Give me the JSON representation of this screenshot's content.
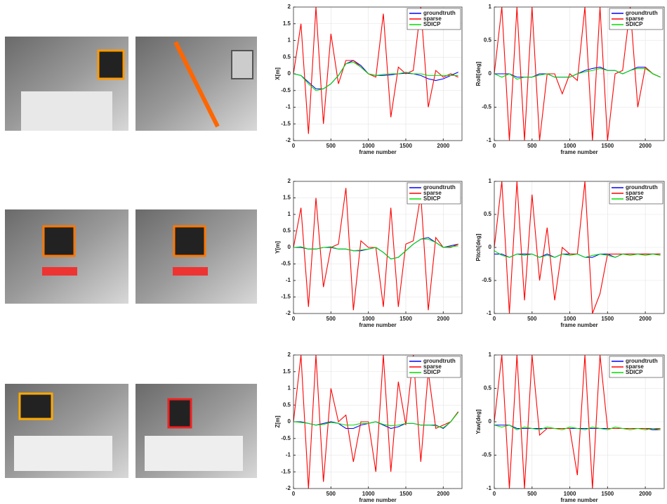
{
  "chart_data": [
    {
      "type": "line",
      "ylabel": "X[m]",
      "xlabel": "frame number",
      "x": [
        0,
        100,
        200,
        300,
        400,
        500,
        600,
        700,
        800,
        900,
        1000,
        1100,
        1200,
        1300,
        1400,
        1500,
        1600,
        1700,
        1800,
        1900,
        2000,
        2100,
        2200
      ],
      "xlim": [
        0,
        2250
      ],
      "xticks": [
        0,
        500,
        1000,
        1500,
        2000
      ],
      "ylim": [
        -2,
        2
      ],
      "yticks": [
        -2,
        -1.5,
        -1,
        -0.5,
        0,
        0.5,
        1,
        1.5,
        2
      ],
      "grid": true,
      "legend": "upper right",
      "series": [
        {
          "name": "groundtruth",
          "color": "#0000ff",
          "values": [
            0,
            -0.05,
            -0.25,
            -0.45,
            -0.45,
            -0.3,
            -0.05,
            0.3,
            0.4,
            0.25,
            0,
            -0.05,
            -0.05,
            -0.03,
            0,
            0.02,
            0,
            -0.05,
            -0.15,
            -0.2,
            -0.15,
            -0.05,
            0.05
          ]
        },
        {
          "name": "sparse",
          "color": "#ff0000",
          "values": [
            0,
            1.5,
            -1.8,
            2,
            -1.5,
            1.2,
            -0.3,
            0.4,
            0.4,
            0.2,
            0,
            -0.1,
            1.8,
            -1.3,
            0.2,
            0,
            0.1,
            2,
            -1,
            0.1,
            -0.1,
            0,
            -0.1
          ]
        },
        {
          "name": "SDICP",
          "color": "#00dd00",
          "values": [
            0,
            -0.05,
            -0.3,
            -0.5,
            -0.45,
            -0.3,
            -0.05,
            0.3,
            0.35,
            0.2,
            0,
            -0.05,
            -0.02,
            0,
            0,
            0.05,
            0,
            0,
            -0.05,
            -0.05,
            -0.05,
            -0.05,
            -0.05
          ]
        }
      ]
    },
    {
      "type": "line",
      "ylabel": "Roll[deg]",
      "xlabel": "frame number",
      "x": [
        0,
        100,
        200,
        300,
        400,
        500,
        600,
        700,
        800,
        900,
        1000,
        1100,
        1200,
        1300,
        1400,
        1500,
        1600,
        1700,
        1800,
        1900,
        2000,
        2100,
        2200
      ],
      "xlim": [
        0,
        2250
      ],
      "xticks": [
        0,
        500,
        1000,
        1500,
        2000
      ],
      "ylim": [
        -1,
        1
      ],
      "yticks": [
        -1,
        -0.5,
        0,
        0.5,
        1
      ],
      "grid": true,
      "legend": "upper right",
      "series": [
        {
          "name": "groundtruth",
          "color": "#0000ff",
          "values": [
            0,
            0,
            0,
            -0.05,
            -0.05,
            -0.05,
            0,
            0,
            -0.05,
            -0.05,
            -0.05,
            0,
            0.05,
            0.08,
            0.1,
            0.05,
            0.05,
            0,
            0.05,
            0.1,
            0.1,
            0,
            -0.05
          ]
        },
        {
          "name": "sparse",
          "color": "#ff0000",
          "values": [
            0,
            1,
            -1,
            1,
            -1,
            1,
            -1,
            0,
            0,
            -0.3,
            0,
            -0.1,
            1,
            -1,
            1,
            -1,
            0,
            0.05,
            1,
            -0.5,
            0.1,
            0,
            -0.05
          ]
        },
        {
          "name": "SDICP",
          "color": "#00dd00",
          "values": [
            0,
            -0.05,
            0,
            -0.08,
            -0.05,
            -0.05,
            -0.02,
            0,
            -0.05,
            -0.05,
            -0.05,
            0,
            0.03,
            0.05,
            0.08,
            0.05,
            0.05,
            0,
            0.05,
            0.08,
            0.08,
            0,
            -0.05
          ]
        }
      ]
    },
    {
      "type": "line",
      "ylabel": "Y[m]",
      "xlabel": "frame number",
      "x": [
        0,
        100,
        200,
        300,
        400,
        500,
        600,
        700,
        800,
        900,
        1000,
        1100,
        1200,
        1300,
        1400,
        1500,
        1600,
        1700,
        1800,
        1900,
        2000,
        2100,
        2200
      ],
      "xlim": [
        0,
        2250
      ],
      "xticks": [
        0,
        500,
        1000,
        1500,
        2000
      ],
      "ylim": [
        -2,
        2
      ],
      "yticks": [
        -2,
        -1.5,
        -1,
        -0.5,
        0,
        0.5,
        1,
        1.5,
        2
      ],
      "grid": true,
      "legend": "upper right",
      "series": [
        {
          "name": "groundtruth",
          "color": "#0000ff",
          "values": [
            0,
            0,
            -0.05,
            -0.05,
            0,
            0,
            -0.05,
            -0.05,
            -0.1,
            -0.1,
            -0.05,
            0,
            -0.15,
            -0.35,
            -0.3,
            -0.1,
            0.1,
            0.25,
            0.3,
            0.15,
            0,
            0.05,
            0.1
          ]
        },
        {
          "name": "sparse",
          "color": "#ff0000",
          "values": [
            0,
            1.2,
            -1.8,
            1.5,
            -1.2,
            0,
            0.1,
            1.8,
            -1.9,
            0.2,
            0,
            0,
            -1.8,
            1.2,
            -1.8,
            0.1,
            0.2,
            1.6,
            -1.9,
            0.3,
            0,
            0,
            0.1
          ]
        },
        {
          "name": "SDICP",
          "color": "#00dd00",
          "values": [
            0,
            0.02,
            -0.05,
            -0.05,
            0,
            0.02,
            -0.05,
            -0.05,
            -0.1,
            -0.08,
            -0.05,
            0,
            -0.15,
            -0.35,
            -0.3,
            -0.1,
            0.1,
            0.25,
            0.25,
            0.15,
            0,
            0.02,
            0.05
          ]
        }
      ]
    },
    {
      "type": "line",
      "ylabel": "Pitch[deg]",
      "xlabel": "frame number",
      "x": [
        0,
        100,
        200,
        300,
        400,
        500,
        600,
        700,
        800,
        900,
        1000,
        1100,
        1200,
        1300,
        1400,
        1500,
        1600,
        1700,
        1800,
        1900,
        2000,
        2100,
        2200
      ],
      "xlim": [
        0,
        2250
      ],
      "xticks": [
        0,
        500,
        1000,
        1500,
        2000
      ],
      "ylim": [
        -1,
        1
      ],
      "yticks": [
        -1,
        -0.5,
        0,
        0.5,
        1
      ],
      "grid": true,
      "legend": "upper right",
      "series": [
        {
          "name": "groundtruth",
          "color": "#0000ff",
          "values": [
            -0.1,
            -0.1,
            -0.15,
            -0.1,
            -0.1,
            -0.1,
            -0.15,
            -0.1,
            -0.15,
            -0.1,
            -0.1,
            -0.1,
            -0.15,
            -0.15,
            -0.1,
            -0.1,
            -0.15,
            -0.1,
            -0.1,
            -0.1,
            -0.1,
            -0.1,
            -0.1
          ]
        },
        {
          "name": "sparse",
          "color": "#ff0000",
          "values": [
            0,
            1,
            -1,
            1,
            -0.8,
            0.8,
            -0.5,
            0.3,
            -0.8,
            0,
            -0.1,
            -0.1,
            1,
            -1,
            -0.7,
            -0.1,
            -0.1,
            -0.1,
            -0.1,
            -0.1,
            -0.1,
            -0.1,
            -0.1
          ]
        },
        {
          "name": "SDICP",
          "color": "#00dd00",
          "values": [
            -0.05,
            -0.12,
            -0.15,
            -0.1,
            -0.12,
            -0.1,
            -0.15,
            -0.12,
            -0.15,
            -0.1,
            -0.12,
            -0.1,
            -0.15,
            -0.12,
            -0.1,
            -0.12,
            -0.15,
            -0.1,
            -0.12,
            -0.1,
            -0.12,
            -0.1,
            -0.12
          ]
        }
      ]
    },
    {
      "type": "line",
      "ylabel": "Z[m]",
      "xlabel": "frame number",
      "x": [
        0,
        100,
        200,
        300,
        400,
        500,
        600,
        700,
        800,
        900,
        1000,
        1100,
        1200,
        1300,
        1400,
        1500,
        1600,
        1700,
        1800,
        1900,
        2000,
        2100,
        2200
      ],
      "xlim": [
        0,
        2250
      ],
      "xticks": [
        0,
        500,
        1000,
        1500,
        2000
      ],
      "ylim": [
        -2,
        2
      ],
      "yticks": [
        -2,
        -1.5,
        -1,
        -0.5,
        0,
        0.5,
        1,
        1.5,
        2
      ],
      "grid": true,
      "legend": "upper right",
      "series": [
        {
          "name": "groundtruth",
          "color": "#0000ff",
          "values": [
            0,
            0,
            -0.05,
            -0.1,
            -0.05,
            0,
            -0.05,
            -0.2,
            -0.2,
            -0.1,
            -0.05,
            0,
            -0.1,
            -0.2,
            -0.15,
            -0.05,
            -0.05,
            -0.1,
            -0.1,
            -0.1,
            -0.2,
            0,
            0.3
          ]
        },
        {
          "name": "sparse",
          "color": "#ff0000",
          "values": [
            0,
            2,
            -2,
            2,
            -1.8,
            1,
            0,
            0.2,
            -1.2,
            0,
            0,
            -1.5,
            2,
            -1.5,
            1.2,
            -0.1,
            2,
            -1.2,
            1.5,
            -0.2,
            -0.1,
            0,
            0.3
          ]
        },
        {
          "name": "SDICP",
          "color": "#00dd00",
          "values": [
            0,
            -0.02,
            -0.05,
            -0.1,
            -0.08,
            -0.02,
            -0.05,
            -0.1,
            -0.1,
            -0.05,
            -0.05,
            0,
            -0.08,
            -0.12,
            -0.1,
            -0.05,
            -0.05,
            -0.1,
            -0.1,
            -0.12,
            -0.18,
            0,
            0.28
          ]
        }
      ]
    },
    {
      "type": "line",
      "ylabel": "Yaw[deg]",
      "xlabel": "frame number",
      "x": [
        0,
        100,
        200,
        300,
        400,
        500,
        600,
        700,
        800,
        900,
        1000,
        1100,
        1200,
        1300,
        1400,
        1500,
        1600,
        1700,
        1800,
        1900,
        2000,
        2100,
        2200
      ],
      "xlim": [
        0,
        2250
      ],
      "xticks": [
        0,
        500,
        1000,
        1500,
        2000
      ],
      "ylim": [
        -1,
        1
      ],
      "yticks": [
        -1,
        -0.5,
        0,
        0.5,
        1
      ],
      "grid": true,
      "legend": "upper right",
      "series": [
        {
          "name": "groundtruth",
          "color": "#0000ff",
          "values": [
            -0.05,
            -0.05,
            -0.05,
            -0.1,
            -0.1,
            -0.1,
            -0.1,
            -0.1,
            -0.1,
            -0.1,
            -0.1,
            -0.1,
            -0.1,
            -0.1,
            -0.1,
            -0.1,
            -0.1,
            -0.1,
            -0.1,
            -0.1,
            -0.1,
            -0.12,
            -0.12
          ]
        },
        {
          "name": "sparse",
          "color": "#ff0000",
          "values": [
            0,
            1,
            -1,
            1,
            -1,
            1,
            -0.2,
            -0.1,
            -0.1,
            -0.1,
            -0.1,
            -0.8,
            1,
            -1,
            1,
            -0.1,
            -0.1,
            -0.1,
            -0.1,
            -0.1,
            -0.1,
            -0.1,
            -0.1
          ]
        },
        {
          "name": "SDICP",
          "color": "#00dd00",
          "values": [
            -0.05,
            -0.08,
            -0.05,
            -0.12,
            -0.08,
            -0.1,
            -0.12,
            -0.08,
            -0.1,
            -0.12,
            -0.08,
            -0.1,
            -0.12,
            -0.08,
            -0.1,
            -0.12,
            -0.08,
            -0.1,
            -0.12,
            -0.1,
            -0.12,
            -0.1,
            -0.12
          ]
        }
      ]
    }
  ]
}
